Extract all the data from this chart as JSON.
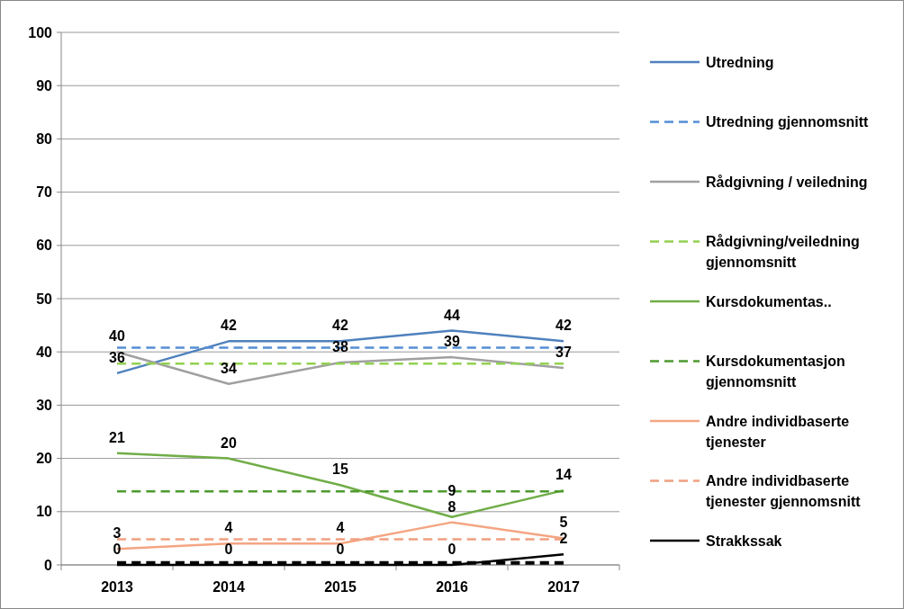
{
  "chart_data": {
    "type": "line",
    "categories": [
      "2013",
      "2014",
      "2015",
      "2016",
      "2017"
    ],
    "ylim": [
      0,
      100
    ],
    "yticks": [
      0,
      10,
      20,
      30,
      40,
      50,
      60,
      70,
      80,
      90,
      100
    ],
    "grid": "y",
    "legend": "right",
    "series": [
      {
        "name": "Utredning",
        "color": "#4f81bd",
        "values": [
          36,
          42,
          42,
          44,
          42
        ],
        "value_labels": [
          "36",
          "42",
          "42",
          "44",
          "42"
        ]
      },
      {
        "name": "Utredning gjennomsnitt",
        "color": "#558ed5",
        "line_style": "dashed",
        "values": [
          40.8,
          40.8,
          40.8,
          40.8,
          40.8
        ]
      },
      {
        "name": "Rådgivning / veiledning",
        "color": "#a0a0a0",
        "values": [
          40,
          34,
          38,
          39,
          37
        ],
        "value_labels": [
          "40",
          "34",
          "38",
          "39",
          "37"
        ]
      },
      {
        "name": "Rådgivning/veiledning gjennomsnitt",
        "color": "#92d050",
        "line_style": "dashed",
        "values": [
          37.8,
          37.8,
          37.8,
          37.8,
          37.8
        ]
      },
      {
        "name": "Kursdokumentas..",
        "color": "#70ad47",
        "values": [
          21,
          20,
          15,
          9,
          14
        ],
        "value_labels": [
          "21",
          "20",
          "15",
          "9",
          "14"
        ]
      },
      {
        "name": "Kursdokumentasjon gjennomsnitt",
        "color": "#4e9a2f",
        "line_style": "dashed",
        "values": [
          13.8,
          13.8,
          13.8,
          13.8,
          13.8
        ]
      },
      {
        "name": "Andre individbaserte tjenester",
        "color": "#f4a582",
        "values": [
          3,
          4,
          4,
          8,
          5
        ],
        "value_labels": [
          "3",
          "4",
          "4",
          "8",
          "5"
        ]
      },
      {
        "name": "Andre individbaserte tjenester gjennomsnitt",
        "color": "#f0a080",
        "line_style": "dashed",
        "values": [
          4.8,
          4.8,
          4.8,
          4.8,
          4.8
        ]
      },
      {
        "name": "Strakkssak",
        "color": "#000000",
        "values": [
          0,
          0,
          0,
          0,
          2
        ],
        "value_labels": [
          "0",
          "0",
          "0",
          "0",
          "2"
        ]
      },
      {
        "color": "#000000",
        "line_style": "dashed",
        "values": [
          0.4,
          0.4,
          0.4,
          0.4,
          0.4
        ]
      }
    ]
  }
}
